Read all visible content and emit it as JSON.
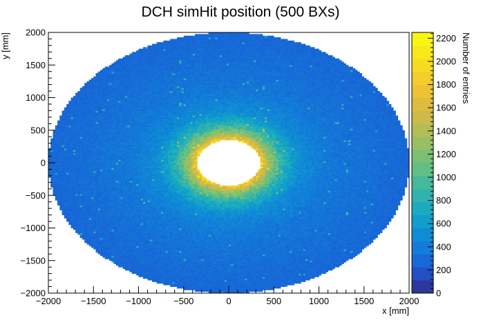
{
  "chart_data": {
    "type": "heatmap",
    "title": "DCH simHit position (500 BXs)",
    "xlabel": "x [mm]",
    "ylabel": "y [mm]",
    "zlabel": "Number of entries",
    "xlim": [
      -2000,
      2000
    ],
    "ylim": [
      -2000,
      2000
    ],
    "zlim": [
      0,
      2250
    ],
    "x_ticks": [
      "−2000",
      "−1500",
      "−1000",
      "−500",
      "0",
      "500",
      "1000",
      "1500",
      "2000"
    ],
    "y_ticks": [
      "−2000",
      "−1500",
      "−1000",
      "−500",
      "0",
      "500",
      "1000",
      "1500",
      "2000"
    ],
    "z_ticks": [
      "0",
      "200",
      "400",
      "600",
      "800",
      "1000",
      "1200",
      "1400",
      "1600",
      "1800",
      "2000",
      "2200"
    ],
    "distribution": {
      "shape": "annulus",
      "inner_radius": 350,
      "outer_radius": 2000,
      "radial_profile": [
        {
          "r": 350,
          "entries": 1900
        },
        {
          "r": 450,
          "entries": 1300
        },
        {
          "r": 600,
          "entries": 800
        },
        {
          "r": 800,
          "entries": 500
        },
        {
          "r": 1100,
          "entries": 380
        },
        {
          "r": 1500,
          "entries": 330
        },
        {
          "r": 2000,
          "entries": 280
        }
      ]
    },
    "colormap": [
      "#352a87",
      "#1a5ed6",
      "#1084d8",
      "#10a5c8",
      "#3ab7a6",
      "#6cc07b",
      "#a8bd5c",
      "#d8b944",
      "#f4c62f",
      "#f8e21c",
      "#f9fb0e"
    ]
  }
}
